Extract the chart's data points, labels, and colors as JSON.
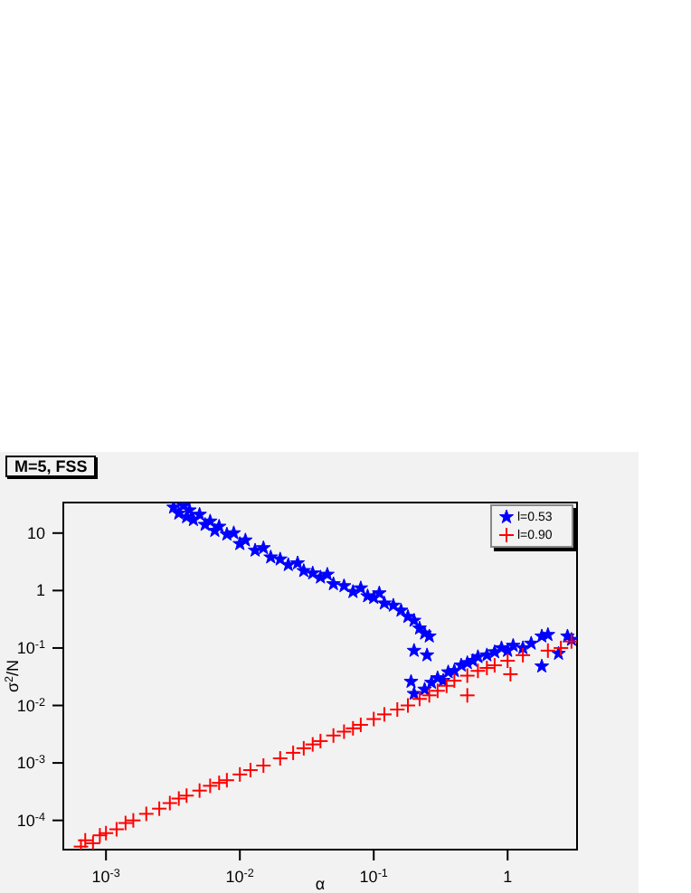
{
  "chart_data": {
    "type": "scatter",
    "title": "M=5, FSS",
    "xlabel": "α",
    "ylabel": "σ$^{2}$/N",
    "log": "xy",
    "grid": false,
    "legend": "top right",
    "xlim": [
      0.00048,
      3.3
    ],
    "ylim": [
      3.1e-05,
      34
    ],
    "xticks": [
      {
        "value": 0.001,
        "label": "10$^{-3}$"
      },
      {
        "value": 0.01,
        "label": "10$^{-2}$"
      },
      {
        "value": 0.1,
        "label": "10$^{-1}$"
      },
      1
    ],
    "yticks": [
      {
        "value": 0.0001,
        "label": "10$^{-4}$"
      },
      {
        "value": 0.001,
        "label": "10$^{-3}$"
      },
      {
        "value": 0.01,
        "label": "10$^{-2}$"
      },
      {
        "value": 0.1,
        "label": "10$^{-1}$"
      },
      1,
      10
    ],
    "series": [
      {
        "name": "l=0.53",
        "color": "#0000ff",
        "marker": "star",
        "x": [
          0.0032,
          0.0035,
          0.0038,
          0.004,
          0.0042,
          0.0045,
          0.005,
          0.0055,
          0.006,
          0.0065,
          0.007,
          0.008,
          0.009,
          0.01,
          0.011,
          0.013,
          0.015,
          0.017,
          0.02,
          0.023,
          0.027,
          0.03,
          0.035,
          0.04,
          0.045,
          0.05,
          0.06,
          0.07,
          0.08,
          0.09,
          0.1,
          0.11,
          0.12,
          0.14,
          0.16,
          0.18,
          0.2,
          0.22,
          0.24,
          0.26,
          0.2,
          0.25,
          0.19,
          0.2,
          0.24,
          0.27,
          0.3,
          0.33,
          0.36,
          0.4,
          0.45,
          0.5,
          0.55,
          0.6,
          0.7,
          0.8,
          0.9,
          1.0,
          1.1,
          1.3,
          1.5,
          1.8,
          2.0,
          1.8,
          2.4,
          2.8,
          3.0
        ],
        "values": [
          28,
          22,
          30,
          19,
          25,
          17,
          21,
          14,
          16,
          11,
          13,
          9.5,
          10,
          6.5,
          7.5,
          5,
          5.5,
          3.8,
          3.5,
          2.8,
          3,
          2.2,
          2,
          1.7,
          1.9,
          1.3,
          1.2,
          0.95,
          1.1,
          0.8,
          0.75,
          0.9,
          0.6,
          0.55,
          0.45,
          0.35,
          0.3,
          0.22,
          0.18,
          0.16,
          0.09,
          0.075,
          0.026,
          0.016,
          0.019,
          0.025,
          0.03,
          0.027,
          0.038,
          0.04,
          0.05,
          0.055,
          0.06,
          0.07,
          0.075,
          0.085,
          0.1,
          0.09,
          0.11,
          0.1,
          0.12,
          0.16,
          0.17,
          0.048,
          0.08,
          0.16,
          0.14
        ]
      },
      {
        "name": "l=0.90",
        "color": "#ff0000",
        "marker": "cross",
        "x": [
          0.00065,
          0.0007,
          0.0008,
          0.0009,
          0.001,
          0.0012,
          0.0014,
          0.0016,
          0.002,
          0.0025,
          0.003,
          0.0035,
          0.004,
          0.005,
          0.006,
          0.007,
          0.008,
          0.01,
          0.012,
          0.015,
          0.02,
          0.025,
          0.03,
          0.035,
          0.04,
          0.05,
          0.06,
          0.07,
          0.08,
          0.1,
          0.12,
          0.15,
          0.18,
          0.22,
          0.26,
          0.3,
          0.35,
          0.4,
          0.5,
          0.6,
          0.7,
          0.8,
          1.0,
          1.05,
          1.3,
          0.5,
          2.0,
          2.5,
          3.0
        ],
        "values": [
          3.5e-05,
          4.5e-05,
          4e-05,
          5.5e-05,
          6e-05,
          7e-05,
          9e-05,
          0.0001,
          0.00013,
          0.00016,
          0.0002,
          0.00024,
          0.00027,
          0.00033,
          0.0004,
          0.00045,
          0.0005,
          0.00063,
          0.00075,
          0.0009,
          0.0012,
          0.0015,
          0.0018,
          0.0021,
          0.0024,
          0.003,
          0.0035,
          0.004,
          0.0046,
          0.0058,
          0.007,
          0.0085,
          0.01,
          0.013,
          0.015,
          0.018,
          0.022,
          0.027,
          0.033,
          0.04,
          0.045,
          0.05,
          0.06,
          0.035,
          0.075,
          0.015,
          0.09,
          0.1,
          0.13
        ]
      }
    ]
  }
}
